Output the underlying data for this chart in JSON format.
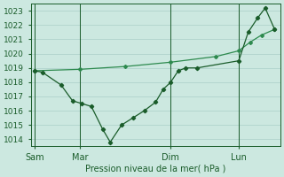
{
  "background_color": "#cce8e0",
  "grid_color": "#aacfc8",
  "line_color_dark": "#1a5c2a",
  "line_color_light": "#2d8a4e",
  "ylabel": "Pression niveau de la mer( hPa )",
  "ylim": [
    1013.5,
    1023.5
  ],
  "yticks": [
    1014,
    1015,
    1016,
    1017,
    1018,
    1019,
    1020,
    1021,
    1022,
    1023
  ],
  "day_labels": [
    "Sam",
    "Mar",
    "Dim",
    "Lun"
  ],
  "day_positions": [
    0,
    24,
    72,
    108
  ],
  "xlim": [
    -2,
    130
  ],
  "series1_x": [
    0,
    4,
    14,
    20,
    25,
    30,
    36,
    40,
    46,
    52,
    58,
    64,
    68,
    72,
    76,
    80,
    86,
    108,
    113,
    118,
    122,
    127
  ],
  "series1_y": [
    1018.8,
    1018.7,
    1017.8,
    1016.7,
    1016.5,
    1016.3,
    1014.7,
    1013.8,
    1015.0,
    1015.5,
    1016.0,
    1016.6,
    1017.5,
    1018.0,
    1018.8,
    1019.0,
    1019.0,
    1019.5,
    1021.5,
    1022.5,
    1023.2,
    1021.7
  ],
  "series2_x": [
    0,
    24,
    48,
    72,
    96,
    108,
    114,
    120,
    127
  ],
  "series2_y": [
    1018.8,
    1018.9,
    1019.1,
    1019.4,
    1019.8,
    1020.2,
    1020.8,
    1021.3,
    1021.7
  ]
}
